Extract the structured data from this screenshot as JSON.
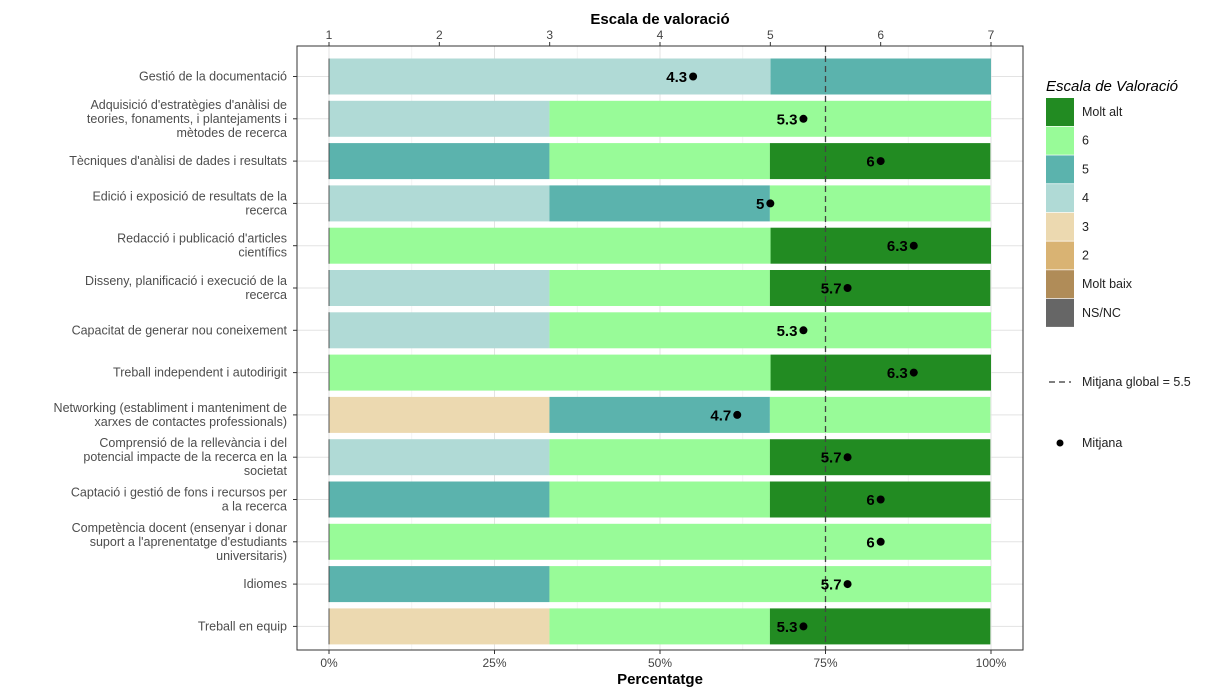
{
  "chart_data": {
    "type": "bar",
    "orientation": "horizontal",
    "stacked": true,
    "x_top_title": "Escala de valoració",
    "x_bottom_title": "Percentatge",
    "top_ticks": [
      "1",
      "2",
      "3",
      "4",
      "5",
      "6",
      "7"
    ],
    "bottom_ticks": [
      "0%",
      "25%",
      "50%",
      "75%",
      "100%"
    ],
    "legend": {
      "title": "Escala de Valoració",
      "placement": "right",
      "items": [
        {
          "key": "molt_alt",
          "label": "Molt alt",
          "color": "#228B22"
        },
        {
          "key": "v6",
          "label": "6",
          "color": "#98FB98"
        },
        {
          "key": "v5",
          "label": "5",
          "color": "#5BB3AD"
        },
        {
          "key": "v4",
          "label": "4",
          "color": "#B0DAD6"
        },
        {
          "key": "v3",
          "label": "3",
          "color": "#ECD9B0"
        },
        {
          "key": "v2",
          "label": "2",
          "color": "#D9B373"
        },
        {
          "key": "molt_baix",
          "label": "Molt baix",
          "color": "#B08C58"
        },
        {
          "key": "nsnc",
          "label": "NS/NC",
          "color": "#666666"
        }
      ],
      "global_mean_label": "Mitjana global =  5.5",
      "mean_label": "Mitjana"
    },
    "global_mean": 5.5,
    "categories": [
      {
        "label": [
          "Gestió de la documentació"
        ],
        "mean": 4.3,
        "mean_label": "4.3",
        "segments": [
          {
            "key": "v4",
            "pct": 66.7
          },
          {
            "key": "v5",
            "pct": 33.3
          }
        ]
      },
      {
        "label": [
          "Adquisició d'estratègies d'anàlisi de",
          "teories, fonaments, i plantejaments i",
          "mètodes de recerca"
        ],
        "mean": 5.3,
        "mean_label": "5.3",
        "segments": [
          {
            "key": "v4",
            "pct": 33.3
          },
          {
            "key": "v6",
            "pct": 66.7
          }
        ]
      },
      {
        "label": [
          "Tècniques d'anàlisi de dades i resultats"
        ],
        "mean": 6,
        "mean_label": "6",
        "segments": [
          {
            "key": "v5",
            "pct": 33.3
          },
          {
            "key": "v6",
            "pct": 33.3
          },
          {
            "key": "molt_alt",
            "pct": 33.3
          }
        ]
      },
      {
        "label": [
          "Edició i exposició de resultats de la",
          "recerca"
        ],
        "mean": 5,
        "mean_label": "5",
        "segments": [
          {
            "key": "v4",
            "pct": 33.3
          },
          {
            "key": "v5",
            "pct": 33.3
          },
          {
            "key": "v6",
            "pct": 33.3
          }
        ]
      },
      {
        "label": [
          "Redacció i publicació d'articles",
          "científics"
        ],
        "mean": 6.3,
        "mean_label": "6.3",
        "segments": [
          {
            "key": "v6",
            "pct": 66.7
          },
          {
            "key": "molt_alt",
            "pct": 33.3
          }
        ]
      },
      {
        "label": [
          "Disseny, planificació i execució de la",
          "recerca"
        ],
        "mean": 5.7,
        "mean_label": "5.7",
        "segments": [
          {
            "key": "v4",
            "pct": 33.3
          },
          {
            "key": "v6",
            "pct": 33.3
          },
          {
            "key": "molt_alt",
            "pct": 33.3
          }
        ]
      },
      {
        "label": [
          "Capacitat de generar nou coneixement"
        ],
        "mean": 5.3,
        "mean_label": "5.3",
        "segments": [
          {
            "key": "v4",
            "pct": 33.3
          },
          {
            "key": "v6",
            "pct": 66.7
          }
        ]
      },
      {
        "label": [
          "Treball independent i autodirigit"
        ],
        "mean": 6.3,
        "mean_label": "6.3",
        "segments": [
          {
            "key": "v6",
            "pct": 66.7
          },
          {
            "key": "molt_alt",
            "pct": 33.3
          }
        ]
      },
      {
        "label": [
          "Networking (establiment i manteniment de",
          "xarxes de contactes professionals)"
        ],
        "mean": 4.7,
        "mean_label": "4.7",
        "segments": [
          {
            "key": "v3",
            "pct": 33.3
          },
          {
            "key": "v5",
            "pct": 33.3
          },
          {
            "key": "v6",
            "pct": 33.3
          }
        ]
      },
      {
        "label": [
          "Comprensió de la rellevància i del",
          "potencial impacte de la recerca en la",
          "societat"
        ],
        "mean": 5.7,
        "mean_label": "5.7",
        "segments": [
          {
            "key": "v4",
            "pct": 33.3
          },
          {
            "key": "v6",
            "pct": 33.3
          },
          {
            "key": "molt_alt",
            "pct": 33.3
          }
        ]
      },
      {
        "label": [
          "Captació i gestió de fons i recursos per",
          "a la recerca"
        ],
        "mean": 6,
        "mean_label": "6",
        "segments": [
          {
            "key": "v5",
            "pct": 33.3
          },
          {
            "key": "v6",
            "pct": 33.3
          },
          {
            "key": "molt_alt",
            "pct": 33.3
          }
        ]
      },
      {
        "label": [
          "Competència docent (ensenyar i donar",
          "suport a l'aprenentatge d'estudiants",
          "universitaris)"
        ],
        "mean": 6,
        "mean_label": "6",
        "segments": [
          {
            "key": "v6",
            "pct": 100
          }
        ]
      },
      {
        "label": [
          "Idiomes"
        ],
        "mean": 5.7,
        "mean_label": "5.7",
        "segments": [
          {
            "key": "v5",
            "pct": 33.3
          },
          {
            "key": "v6",
            "pct": 66.7
          }
        ]
      },
      {
        "label": [
          "Treball en equip"
        ],
        "mean": 5.3,
        "mean_label": "5.3",
        "segments": [
          {
            "key": "v3",
            "pct": 33.3
          },
          {
            "key": "v6",
            "pct": 33.3
          },
          {
            "key": "molt_alt",
            "pct": 33.3
          }
        ]
      }
    ]
  }
}
